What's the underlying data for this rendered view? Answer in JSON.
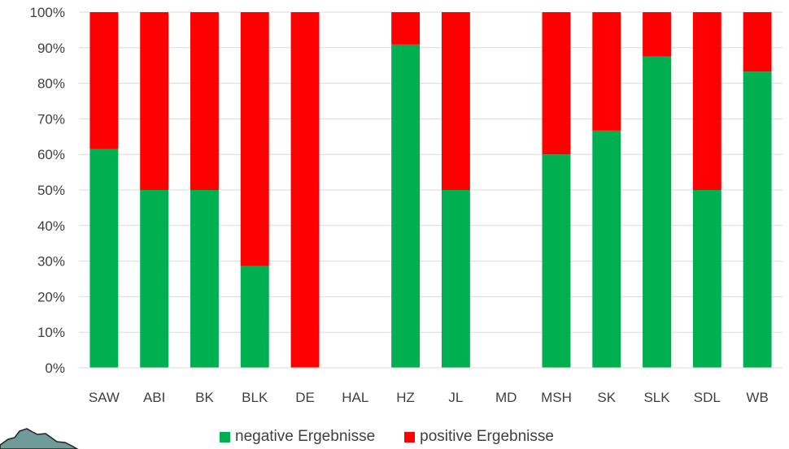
{
  "chart_data": {
    "type": "bar",
    "stacked": true,
    "categories": [
      "SAW",
      "ABI",
      "BK",
      "BLK",
      "DE",
      "HAL",
      "HZ",
      "JL",
      "MD",
      "MSH",
      "SK",
      "SLK",
      "SDL",
      "WB"
    ],
    "series": [
      {
        "name": "negative Ergebnisse",
        "color": "#00b050",
        "values": [
          61.5,
          50,
          50,
          28.6,
          0,
          0,
          90.9,
          50,
          0,
          60,
          66.7,
          87.5,
          50,
          83.3
        ]
      },
      {
        "name": "positive Ergebnisse",
        "color": "#ff0000",
        "values": [
          38.5,
          50,
          50,
          71.4,
          100,
          0,
          9.1,
          50,
          0,
          40,
          33.3,
          12.5,
          50,
          16.7
        ]
      }
    ],
    "y_ticks": [
      "0%",
      "10%",
      "20%",
      "30%",
      "40%",
      "50%",
      "60%",
      "70%",
      "80%",
      "90%",
      "100%"
    ],
    "ylim": [
      0,
      100
    ],
    "grid": true,
    "legend_position": "bottom",
    "title": "",
    "xlabel": "",
    "ylabel": ""
  }
}
